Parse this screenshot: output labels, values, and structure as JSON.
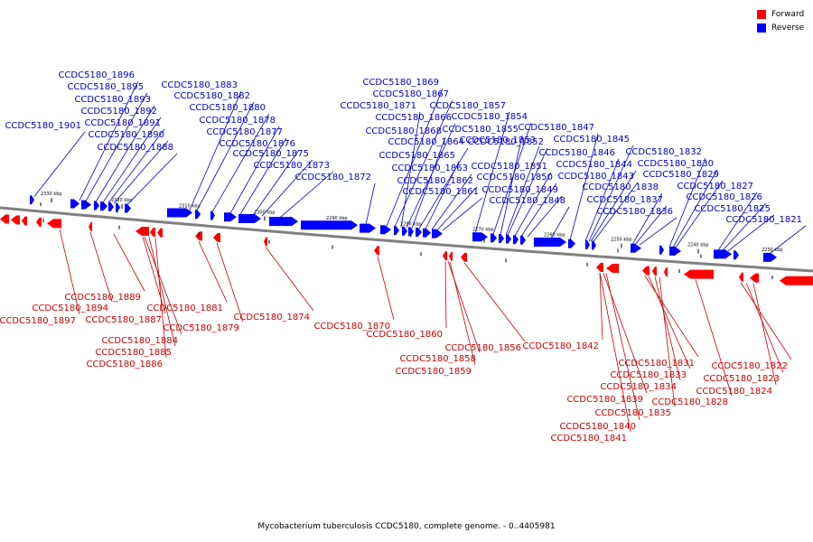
{
  "caption": "Mycobacterium tuberculosis CCDC5180, complete genome. - 0..4405981",
  "legend": [
    {
      "label": "Forward",
      "color": "#ff0000"
    },
    {
      "label": "Reverse",
      "color": "#0000ff"
    }
  ],
  "colors": {
    "forward": "#ff0000",
    "reverse": "#0000ff",
    "backbone": "#808080",
    "label_forward": "#cc0000",
    "label_reverse": "#0000cc"
  },
  "ticks": [
    "2330 kbp",
    "2320 kbp",
    "2310 kbp",
    "2300 kbp",
    "2290 kbp",
    "2280 kbp",
    "2270 kbp",
    "2260 kbp",
    "2250 kbp",
    "2240 kbp",
    "2230 kbp"
  ],
  "reverse_labels": [
    "CCDC5180_1901",
    "CCDC5180_1896",
    "CCDC5180_1895",
    "CCDC5180_1893",
    "CCDC5180_1892",
    "CCDC5180_1891",
    "CCDC5180_1890",
    "CCDC5180_1888",
    "CCDC5180_1883",
    "CCDC5180_1882",
    "CCDC5180_1880",
    "CCDC5180_1878",
    "CCDC5180_1877",
    "CCDC5180_1876",
    "CCDC5180_1875",
    "CCDC5180_1873",
    "CCDC5180_1872",
    "CCDC5180_1869",
    "CCDC5180_1867",
    "CCDC5180_1871",
    "CCDC5180_1866",
    "CCDC5180_1868",
    "CCDC5180_1864",
    "CCDC5180_1865",
    "CCDC5180_1863",
    "CCDC5180_1862",
    "CCDC5180_1861",
    "CCDC5180_1857",
    "CCDC5180_1854",
    "CCDC5180_1855",
    "CCDC5180_1853",
    "CCDC5180_1852",
    "CCDC5180_1851",
    "CCDC5180_1850",
    "CCDC5180_1849",
    "CCDC5180_1848",
    "CCDC5180_1847",
    "CCDC5180_1846",
    "CCDC5180_1845",
    "CCDC5180_1844",
    "CCDC5180_1843",
    "CCDC5180_1838",
    "CCDC5180_1837",
    "CCDC5180_1836",
    "CCDC5180_1832",
    "CCDC5180_1830",
    "CCDC5180_1829",
    "CCDC5180_1827",
    "CCDC5180_1826",
    "CCDC5180_1825",
    "CCDC5180_1821"
  ],
  "forward_labels": [
    "CCDC5180_1894",
    "CCDC5180_1897",
    "CCDC5180_1889",
    "CCDC5180_1887",
    "CCDC5180_1884",
    "CCDC5180_1885",
    "CCDC5180_1886",
    "CCDC5180_1881",
    "CCDC5180_1879",
    "CCDC5180_1874",
    "CCDC5180_1870",
    "CCDC5180_1860",
    "CCDC5180_1858",
    "CCDC5180_1859",
    "CCDC5180_1856",
    "CCDC5180_1842",
    "CCDC5180_1831",
    "CCDC5180_1833",
    "CCDC5180_1834",
    "CCDC5180_1839",
    "CCDC5180_1835",
    "CCDC5180_1828",
    "CCDC5180_1840",
    "CCDC5180_1841",
    "CCDC5180_1822",
    "CCDC5180_1823",
    "CCDC5180_1824"
  ]
}
